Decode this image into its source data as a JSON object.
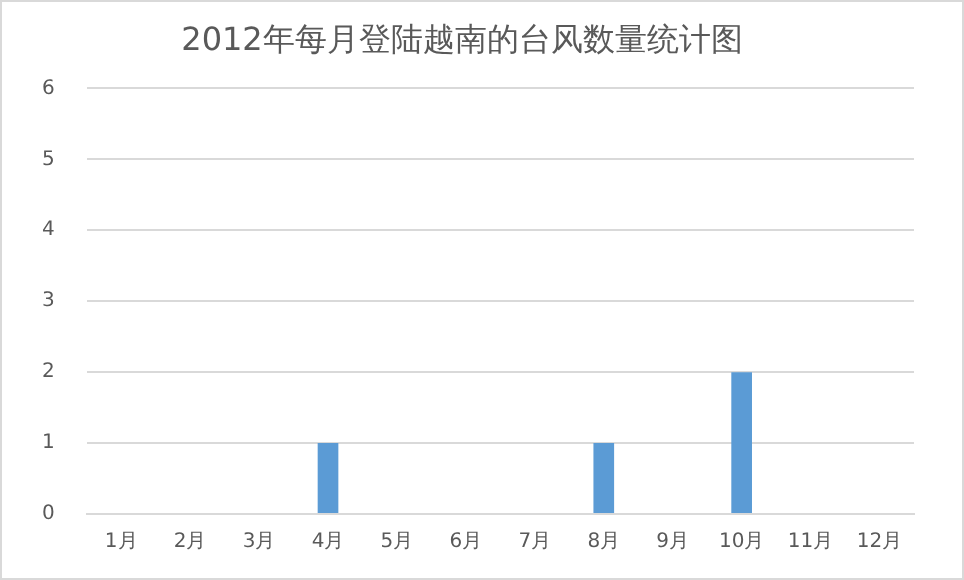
{
  "chart_data": {
    "type": "bar",
    "title": "2012年每月登陆越南的台风数量统计图",
    "categories": [
      "1月",
      "2月",
      "3月",
      "4月",
      "5月",
      "6月",
      "7月",
      "8月",
      "9月",
      "10月",
      "11月",
      "12月"
    ],
    "values": [
      0,
      0,
      0,
      1,
      0,
      0,
      0,
      1,
      0,
      2,
      0,
      0
    ],
    "color": "#5b9bd5",
    "ylim": [
      0,
      6
    ],
    "yticks": [
      0,
      1,
      2,
      3,
      4,
      5,
      6
    ],
    "grid": "y",
    "legend": false
  }
}
